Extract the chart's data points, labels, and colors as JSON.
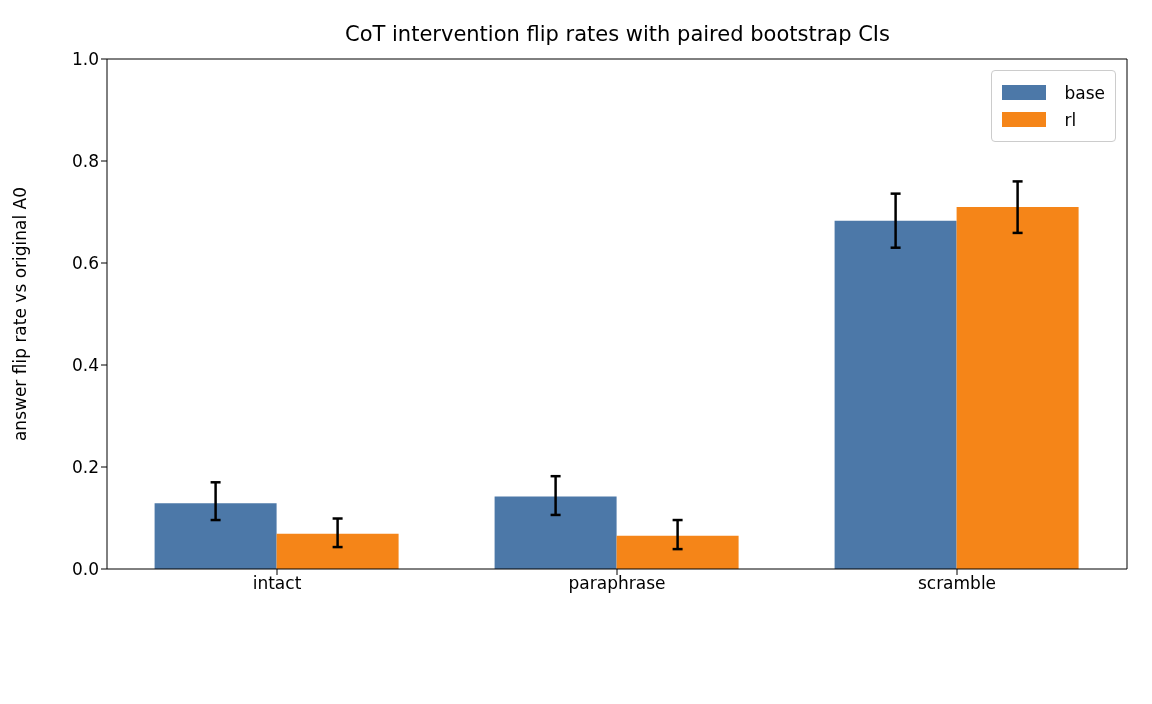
{
  "chart_data": {
    "type": "bar",
    "title": "CoT intervention flip rates with paired bootstrap CIs",
    "ylabel": "answer flip rate vs original A0",
    "categories": [
      "intact",
      "paraphrase",
      "scramble"
    ],
    "series": [
      {
        "name": "base",
        "color": "#4c78a8",
        "values": [
          0.129,
          0.142,
          0.683
        ],
        "errors": [
          [
            0.096,
            0.17
          ],
          [
            0.106,
            0.182
          ],
          [
            0.63,
            0.736
          ]
        ]
      },
      {
        "name": "rl",
        "color": "#f58518",
        "values": [
          0.069,
          0.065,
          0.71
        ],
        "errors": [
          [
            0.043,
            0.099
          ],
          [
            0.039,
            0.096
          ],
          [
            0.659,
            0.76
          ]
        ]
      }
    ],
    "ylim": [
      0,
      1
    ],
    "yticks": [
      {
        "value": 0,
        "label": "0.0"
      },
      0.2,
      0.4,
      0.6,
      0.8,
      {
        "value": 1,
        "label": "1.0"
      }
    ],
    "grid": false,
    "legend": "top right"
  }
}
